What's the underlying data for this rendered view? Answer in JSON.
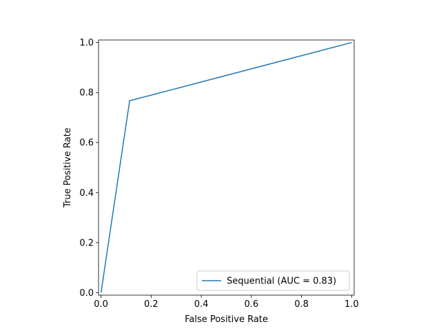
{
  "chart_data": {
    "type": "line",
    "title": "",
    "xlabel": "False Positive Rate",
    "ylabel": "True Positive Rate",
    "xlim": [
      -0.01,
      1.01
    ],
    "ylim": [
      -0.01,
      1.01
    ],
    "xticks": [
      0.0,
      0.2,
      0.4,
      0.6,
      0.8,
      1.0
    ],
    "yticks": [
      0.0,
      0.2,
      0.4,
      0.6,
      0.8,
      1.0
    ],
    "xtick_labels": [
      "0.0",
      "0.2",
      "0.4",
      "0.6",
      "0.8",
      "1.0"
    ],
    "ytick_labels": [
      "0.0",
      "0.2",
      "0.4",
      "0.6",
      "0.8",
      "1.0"
    ],
    "grid": false,
    "legend_position": "lower-right",
    "series": [
      {
        "name": "Sequential (AUC = 0.83)",
        "color": "#1f77b4",
        "x": [
          0.0,
          0.114,
          1.0
        ],
        "y": [
          0.0,
          0.767,
          1.0
        ]
      }
    ]
  }
}
